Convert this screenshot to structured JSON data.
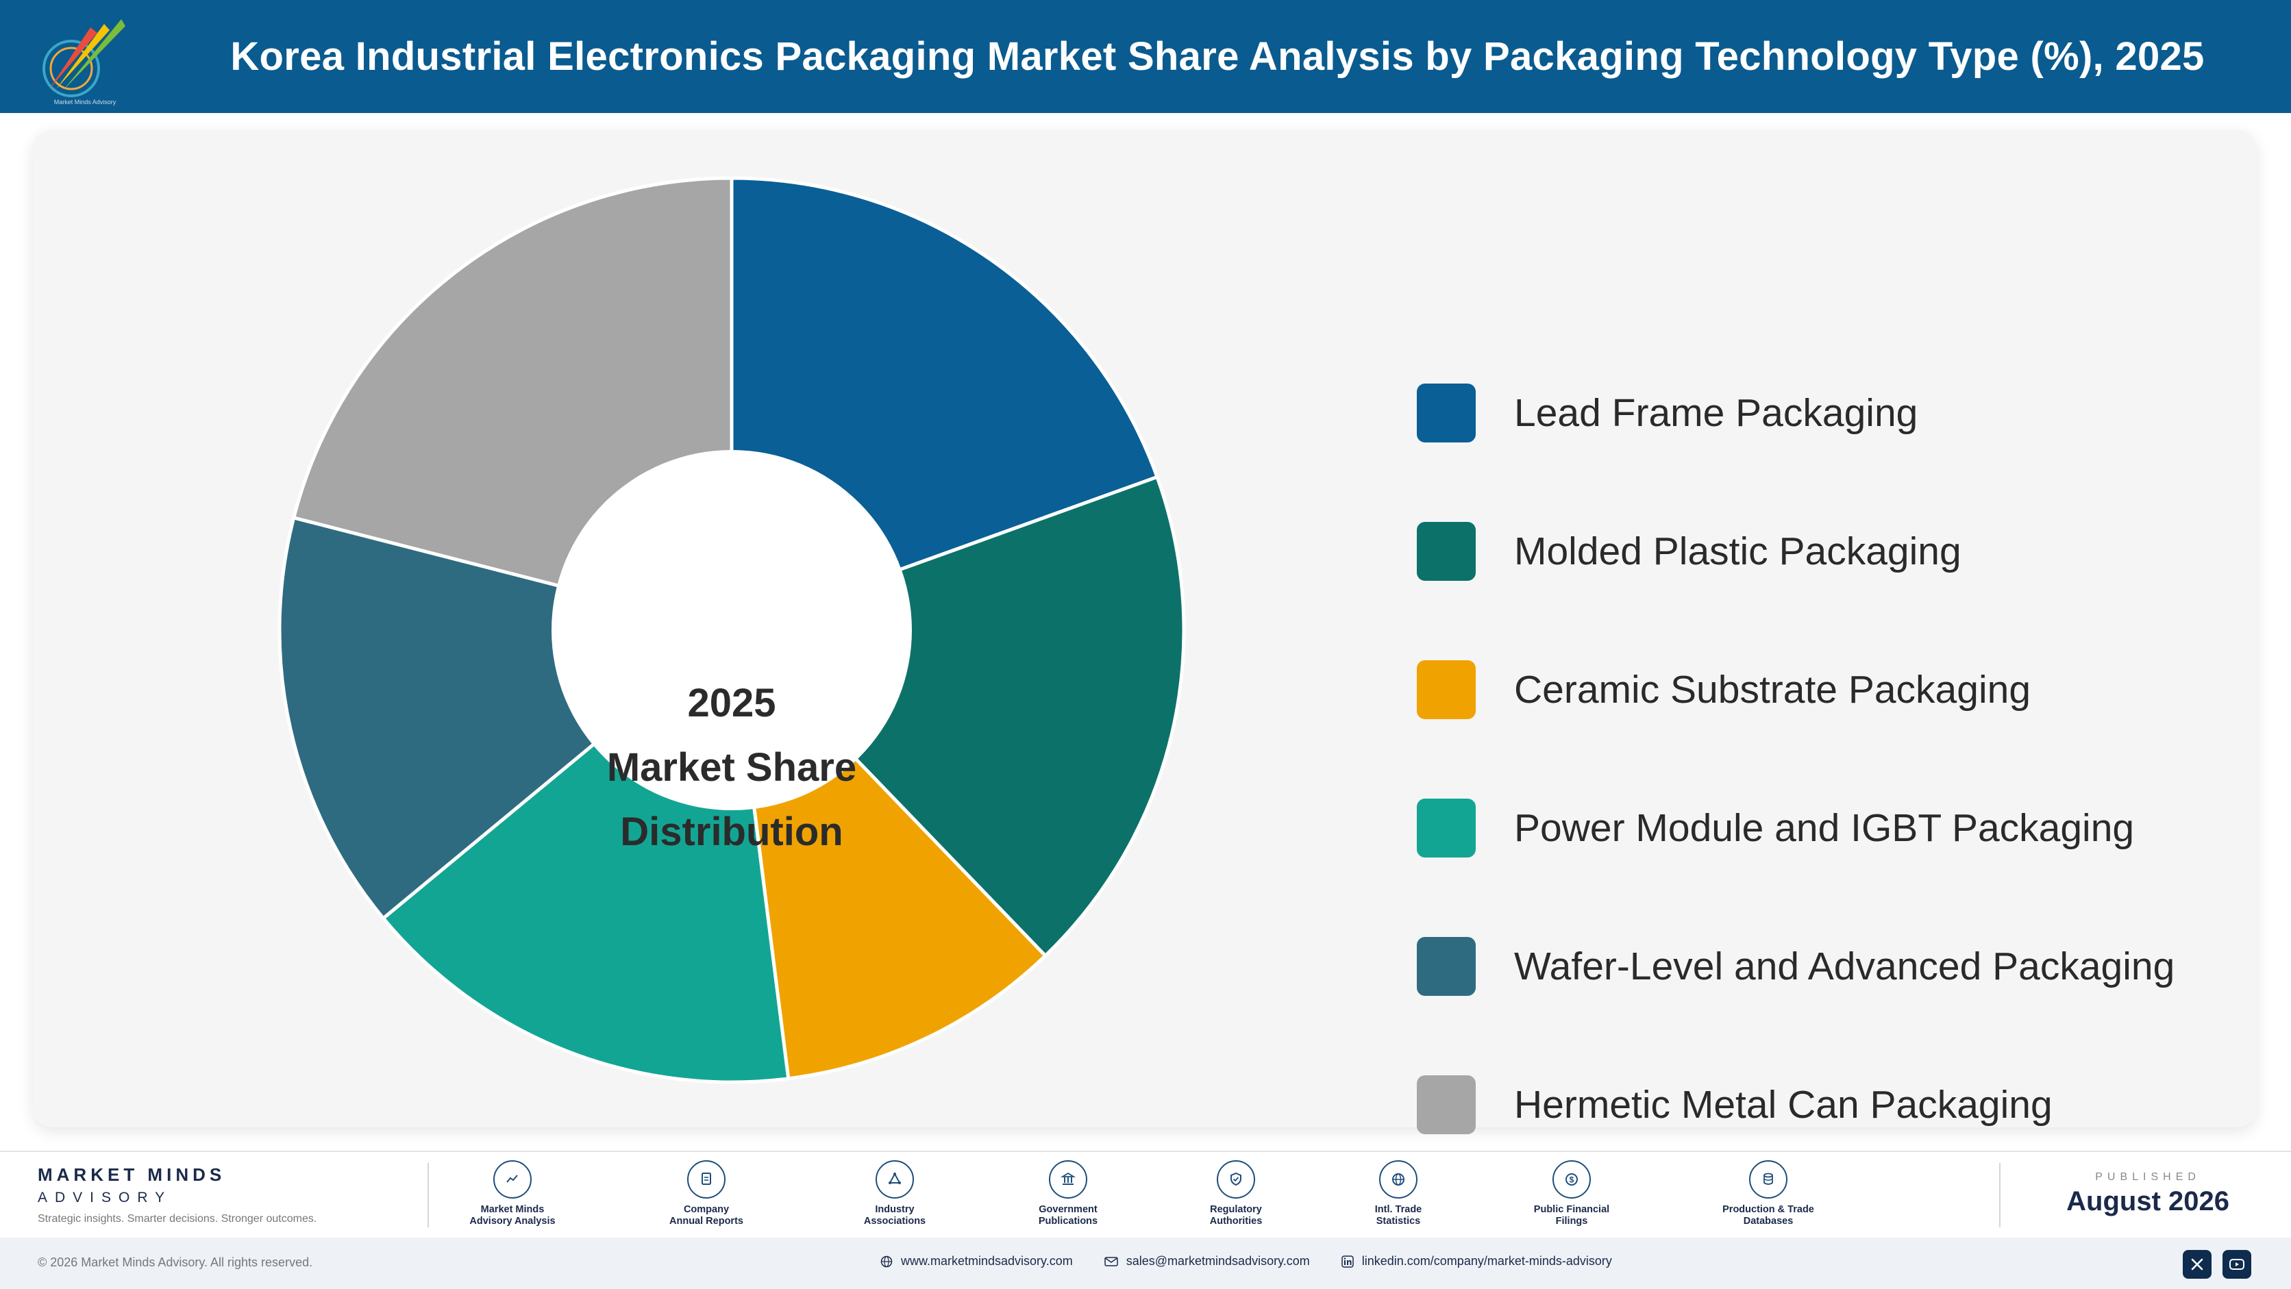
{
  "header": {
    "title": "Korea Industrial Electronics Packaging Market Share Analysis by Packaging Technology Type (%), 2025",
    "logo_caption": "Market Minds Advisory"
  },
  "chart_data": {
    "type": "pie",
    "style": "donut",
    "center_label": [
      "2025",
      "Market Share",
      "Distribution"
    ],
    "legend_position": "right",
    "categories": [
      "Lead Frame Packaging",
      "Molded Plastic Packaging",
      "Ceramic Substrate Packaging",
      "Power Module and IGBT Packaging",
      "Wafer-Level and Advanced Packaging",
      "Hermetic Metal Can Packaging"
    ],
    "values": [
      19.5,
      18.3,
      10.2,
      16.0,
      15.0,
      21.0
    ],
    "colors": [
      "#0a5f96",
      "#0c7269",
      "#f0a300",
      "#13a594",
      "#2e6b80",
      "#a6a6a6"
    ]
  },
  "footer": {
    "brand_name": "MARKET MINDS",
    "brand_sub": "ADVISORY",
    "brand_tagline": "Strategic insights. Smarter decisions. Stronger outcomes.",
    "sources": [
      {
        "label": "Market Minds\nAdvisory Analysis",
        "icon": "trend-chart-icon"
      },
      {
        "label": "Company\nAnnual Reports",
        "icon": "document-icon"
      },
      {
        "label": "Industry\nAssociations",
        "icon": "network-icon"
      },
      {
        "label": "Government\nPublications",
        "icon": "government-building-icon"
      },
      {
        "label": "Regulatory\nAuthorities",
        "icon": "shield-icon"
      },
      {
        "label": "Intl. Trade\nStatistics",
        "icon": "globe-icon"
      },
      {
        "label": "Public Financial\nFilings",
        "icon": "currency-icon"
      },
      {
        "label": "Production & Trade\nDatabases",
        "icon": "database-icon"
      }
    ],
    "published_label": "PUBLISHED",
    "published_date": "August 2026",
    "copyright": "© 2026 Market Minds Advisory. All rights reserved.",
    "website": "www.marketmindsadvisory.com",
    "email": "sales@marketmindsadvisory.com",
    "linkedin": "linkedin.com/company/market-minds-advisory"
  }
}
